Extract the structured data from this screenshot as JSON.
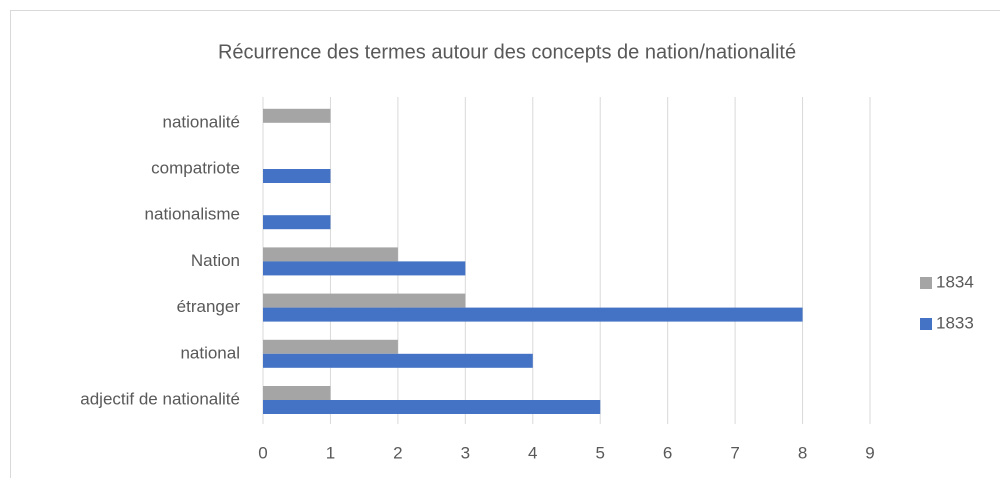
{
  "chart_data": {
    "type": "hbar",
    "title": "Récurrence des termes autour des concepts de nation/nationalité",
    "categories": [
      "adjectif de nationalité",
      "national",
      "étranger",
      "Nation",
      "nationalisme",
      "compatriote",
      "nationalité"
    ],
    "series": [
      {
        "name": "1834",
        "color": "#a5a5a5",
        "values": [
          1,
          2,
          3,
          2,
          0,
          0,
          1
        ]
      },
      {
        "name": "1833",
        "color": "#4472c4",
        "values": [
          5,
          4,
          8,
          3,
          1,
          1,
          0
        ]
      }
    ],
    "xlim": [
      0,
      9
    ],
    "xticks": [
      0,
      1,
      2,
      3,
      4,
      5,
      6,
      7,
      8,
      9
    ],
    "grid": true,
    "legend": "right"
  }
}
